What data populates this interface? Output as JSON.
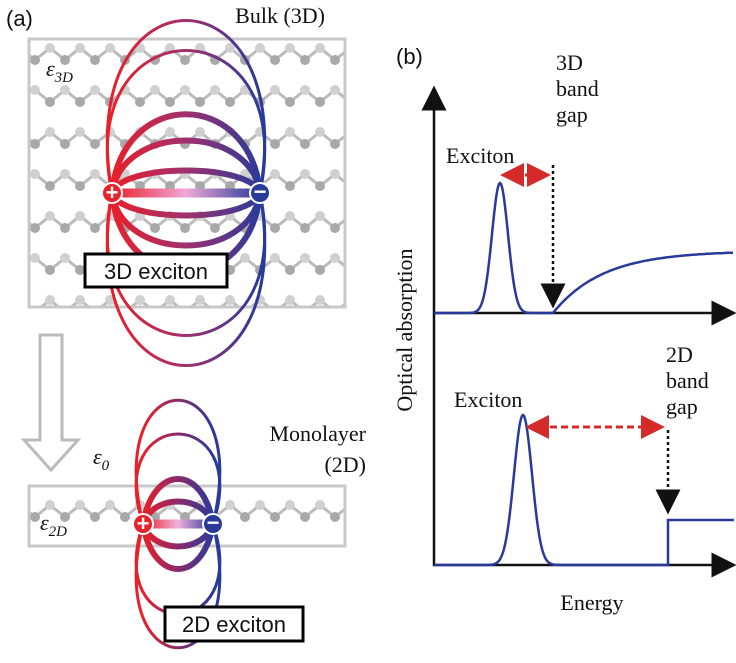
{
  "panel_a": {
    "label": "(a)",
    "bulk_label": "Bulk (3D)",
    "eps_3d": {
      "symbol": "ε",
      "sub": "3D"
    },
    "exciton_3d": "3D exciton",
    "charges_3d": [
      "+",
      "−"
    ],
    "eps_0": {
      "symbol": "ε",
      "sub": "0"
    },
    "monolayer_label": [
      "Monolayer",
      "(2D)"
    ],
    "eps_2d": {
      "symbol": "ε",
      "sub": "2D"
    },
    "exciton_2d": "2D exciton",
    "charges_2d": [
      "+",
      "−"
    ]
  },
  "panel_b": {
    "label": "(b)",
    "y_axis": "Optical absorption",
    "x_axis": "Energy",
    "top": {
      "exciton": "Exciton",
      "band_gap": [
        "3D",
        "band",
        "gap"
      ]
    },
    "bottom": {
      "exciton": "Exciton",
      "band_gap": [
        "2D",
        "band",
        "gap"
      ]
    }
  }
}
